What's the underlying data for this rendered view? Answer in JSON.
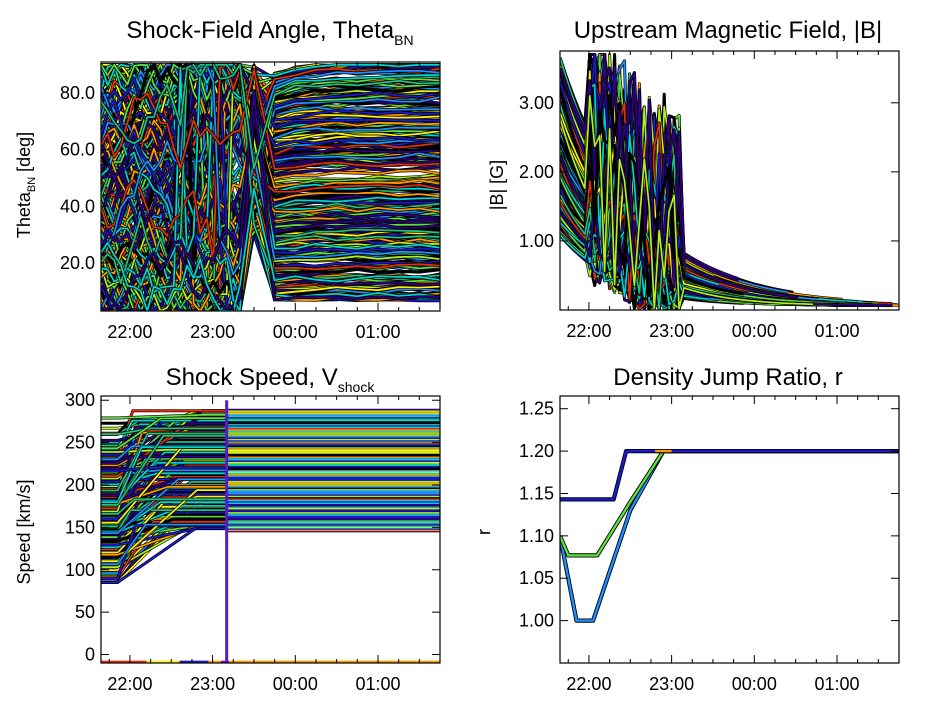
{
  "chart_data": [
    {
      "type": "line",
      "title": "Shock-Field Angle, Theta",
      "title_sub": "BN",
      "ylabel": "Theta",
      "ylabel_sub": "BN",
      "ylabel_suffix": " [deg]",
      "xlabel": "",
      "x_ticks": [
        "22:00",
        "23:00",
        "00:00",
        "01:00"
      ],
      "y_ticks": [
        "20.0",
        "40.0",
        "60.0",
        "80.0"
      ],
      "y_tick_values": [
        20,
        40,
        60,
        80
      ],
      "xlim_hours": [
        21.65,
        25.75
      ],
      "ylim": [
        3,
        91
      ],
      "series_count_estimate": "hundreds",
      "sample_series": [
        {
          "color": "#00d4d4",
          "x": [
            21.7,
            22.2,
            22.8,
            23.2,
            23.5,
            24.0,
            25.75
          ],
          "y": [
            88,
            85,
            70,
            20,
            72,
            80,
            82
          ]
        },
        {
          "color": "#1a1acc",
          "x": [
            21.7,
            22.2,
            22.8,
            23.2,
            23.5,
            24.0,
            25.75
          ],
          "y": [
            60,
            45,
            35,
            15,
            55,
            60,
            61
          ]
        },
        {
          "color": "#e03010",
          "x": [
            21.7,
            22.2,
            22.5,
            22.9,
            23.5,
            25.75
          ],
          "y": [
            20,
            38,
            25,
            30,
            40,
            42
          ]
        },
        {
          "color": "#ffee10",
          "x": [
            21.7,
            22.0,
            22.6,
            23.2,
            23.5,
            25.75
          ],
          "y": [
            10,
            20,
            60,
            35,
            60,
            65
          ]
        }
      ]
    },
    {
      "type": "line",
      "title": "Upstream Magnetic Field, |B|",
      "ylabel": "|B| [G]",
      "xlabel": "",
      "x_ticks": [
        "22:00",
        "23:00",
        "00:00",
        "01:00"
      ],
      "y_ticks": [
        "1.00",
        "2.00",
        "3.00"
      ],
      "y_tick_values": [
        1,
        2,
        3
      ],
      "xlim_hours": [
        21.65,
        25.75
      ],
      "ylim": [
        0,
        3.75
      ],
      "series_count_estimate": "hundreds",
      "sample_series": [
        {
          "color": "#1a1acc",
          "x": [
            21.7,
            22.0,
            22.5,
            23.0,
            23.5,
            24.0,
            25.75
          ],
          "y": [
            2.5,
            1.6,
            0.8,
            0.45,
            0.25,
            0.15,
            0.1
          ]
        },
        {
          "color": "#00d4d4",
          "x": [
            21.7,
            22.0,
            22.5,
            23.0,
            23.5,
            24.0,
            25.75
          ],
          "y": [
            3.4,
            2.0,
            1.0,
            0.55,
            0.3,
            0.18,
            0.1
          ]
        },
        {
          "color": "#e03010",
          "x": [
            21.7,
            22.0,
            22.5,
            23.0,
            23.5,
            24.0,
            25.75
          ],
          "y": [
            3.0,
            1.8,
            0.9,
            0.5,
            0.28,
            0.16,
            0.09
          ]
        },
        {
          "color": "#60e040",
          "x": [
            21.7,
            22.0,
            22.5,
            23.0,
            23.5,
            24.0,
            25.75
          ],
          "y": [
            2.2,
            1.3,
            0.7,
            0.38,
            0.22,
            0.12,
            0.08
          ]
        }
      ]
    },
    {
      "type": "line",
      "title": "Shock Speed, V",
      "title_sub": "shock",
      "ylabel": "Speed [km/s]",
      "xlabel": "",
      "x_ticks": [
        "22:00",
        "23:00",
        "00:00",
        "01:00"
      ],
      "y_ticks": [
        "0",
        "50",
        "100",
        "150",
        "200",
        "250",
        "300"
      ],
      "y_tick_values": [
        0,
        50,
        100,
        150,
        200,
        250,
        300
      ],
      "xlim_hours": [
        21.65,
        25.75
      ],
      "ylim": [
        -10,
        305
      ],
      "speed_band": [
        145,
        290
      ],
      "series_count_estimate": "hundreds"
    },
    {
      "type": "line",
      "title": "Density Jump Ratio, r",
      "ylabel": "r",
      "xlabel": "",
      "x_ticks": [
        "22:00",
        "23:00",
        "00:00",
        "01:00"
      ],
      "y_ticks": [
        "1.00",
        "1.05",
        "1.10",
        "1.15",
        "1.20",
        "1.25"
      ],
      "y_tick_values": [
        1.0,
        1.05,
        1.1,
        1.15,
        1.2,
        1.25
      ],
      "xlim_hours": [
        21.65,
        25.75
      ],
      "ylim": [
        0.95,
        1.265
      ],
      "series": [
        {
          "color": "#1a1acc",
          "x": [
            21.65,
            22.3,
            22.45,
            25.75
          ],
          "y": [
            1.143,
            1.143,
            1.2,
            1.2
          ]
        },
        {
          "color": "#60e040",
          "x": [
            21.65,
            21.75,
            22.1,
            22.5,
            22.9,
            25.75
          ],
          "y": [
            1.1,
            1.077,
            1.077,
            1.14,
            1.2,
            1.2
          ]
        },
        {
          "color": "#1e90ff",
          "x": [
            21.65,
            21.85,
            22.05,
            22.5,
            22.9,
            25.75
          ],
          "y": [
            1.1,
            1.0,
            1.0,
            1.13,
            1.2,
            1.2
          ]
        },
        {
          "color": "#ff9a00",
          "x": [
            22.8,
            23.0
          ],
          "y": [
            1.2,
            1.2
          ]
        }
      ]
    }
  ],
  "colors": {
    "palette": [
      "#000000",
      "#30008a",
      "#1a1acc",
      "#1e90ff",
      "#00d4d4",
      "#20c080",
      "#60e040",
      "#b0f020",
      "#ffee10",
      "#ff9a00",
      "#e03010"
    ]
  }
}
